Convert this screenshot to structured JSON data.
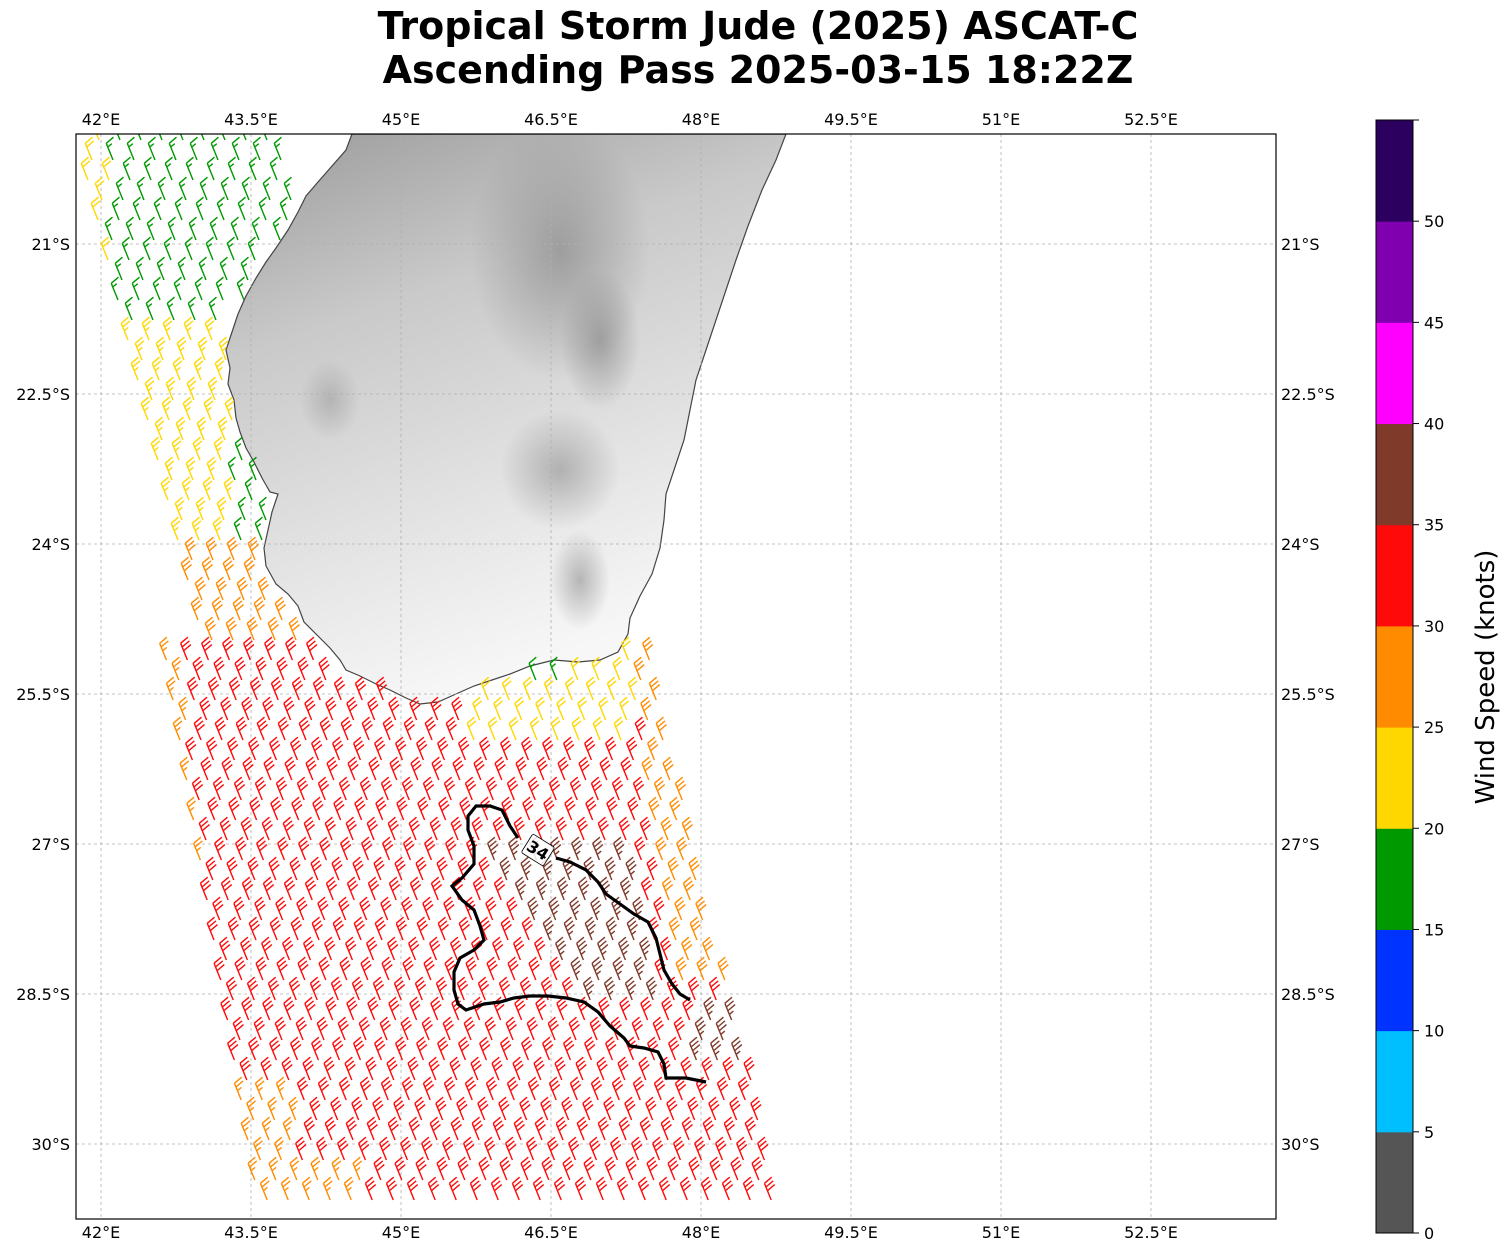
{
  "title": {
    "line1": "Tropical Storm Jude (2025) ASCAT-C",
    "line2": "Ascending Pass 2025-03-15 18:22Z"
  },
  "map": {
    "lon_range": [
      41.75,
      53.75
    ],
    "lat_range": [
      -19.9,
      -30.75
    ],
    "lon_ticks": [
      "42°E",
      "43.5°E",
      "45°E",
      "46.5°E",
      "48°E",
      "49.5°E",
      "51°E",
      "52.5°E"
    ],
    "lat_ticks": [
      "21°S",
      "22.5°S",
      "24°S",
      "25.5°S",
      "27°S",
      "28.5°S",
      "30°S"
    ],
    "gridlines": true,
    "land_feature": "Madagascar (terrain shaded gray)",
    "contour_label": "34"
  },
  "colorbar": {
    "label": "Wind Speed (knots)",
    "ticks": [
      "0",
      "5",
      "10",
      "15",
      "20",
      "25",
      "30",
      "35",
      "40",
      "45",
      "50"
    ],
    "colors": [
      "#555555",
      "#00bfff",
      "#0033ff",
      "#009900",
      "#ffd700",
      "#ff8c00",
      "#ff0a0a",
      "#803a2a",
      "#ff00ff",
      "#8000b0",
      "#2b005e"
    ]
  }
}
